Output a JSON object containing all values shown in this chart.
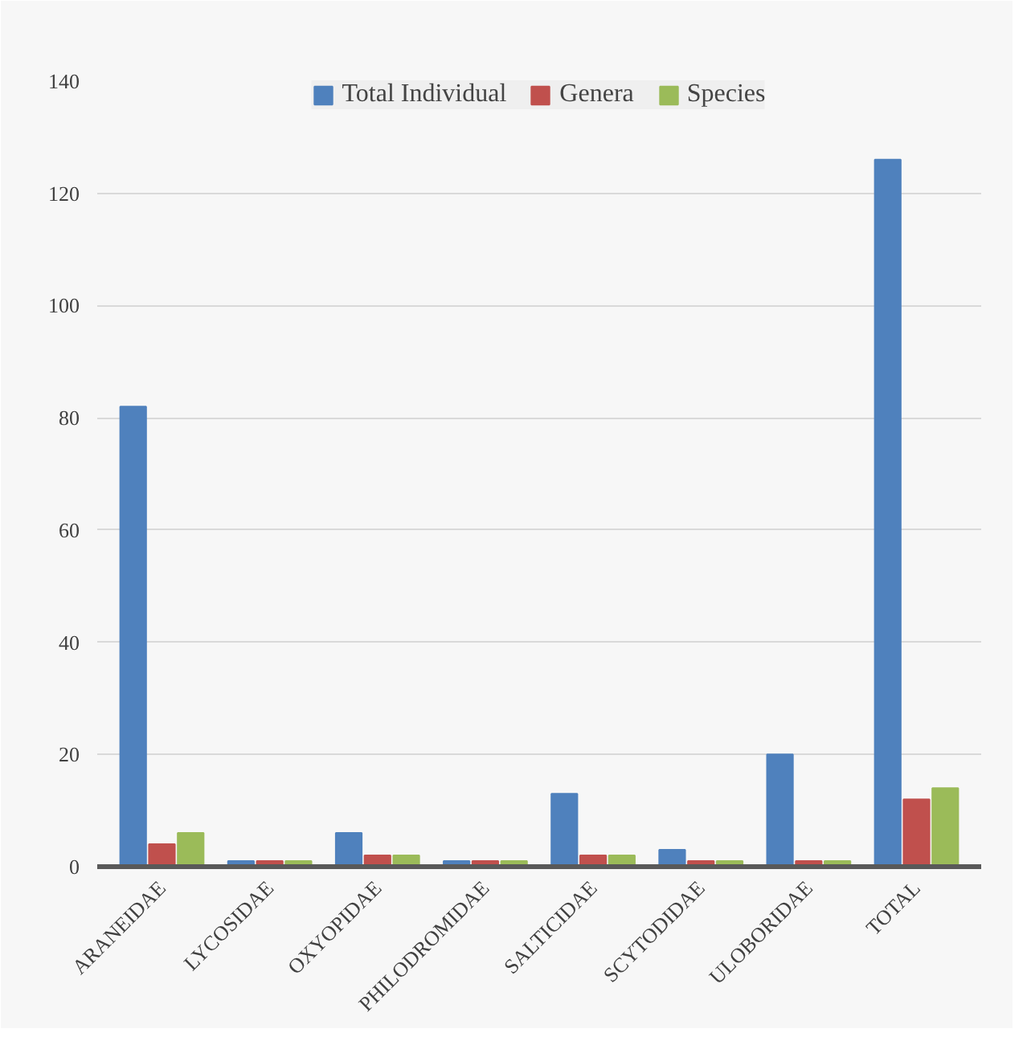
{
  "chart_data": {
    "type": "bar",
    "categories": [
      "ARANEIDAE",
      "LYCOSIDAE",
      "OXYOPIDAE",
      "PHILODROMIDAE",
      "SALTICIDAE",
      "SCYTODIDAE",
      "ULOBORIDAE",
      "TOTAL"
    ],
    "series": [
      {
        "name": "Total Individual",
        "color": "#4f81bd",
        "values": [
          82,
          1,
          6,
          1,
          13,
          3,
          20,
          126
        ]
      },
      {
        "name": "Genera",
        "color": "#c0504d",
        "values": [
          4,
          1,
          2,
          1,
          2,
          1,
          1,
          12
        ]
      },
      {
        "name": "Species",
        "color": "#9bbb59",
        "values": [
          6,
          1,
          2,
          1,
          2,
          1,
          1,
          14
        ]
      }
    ],
    "ylim": [
      0,
      140
    ],
    "yticks": [
      0,
      20,
      40,
      60,
      80,
      100,
      120,
      140
    ],
    "grid": "y",
    "legend": "top"
  }
}
